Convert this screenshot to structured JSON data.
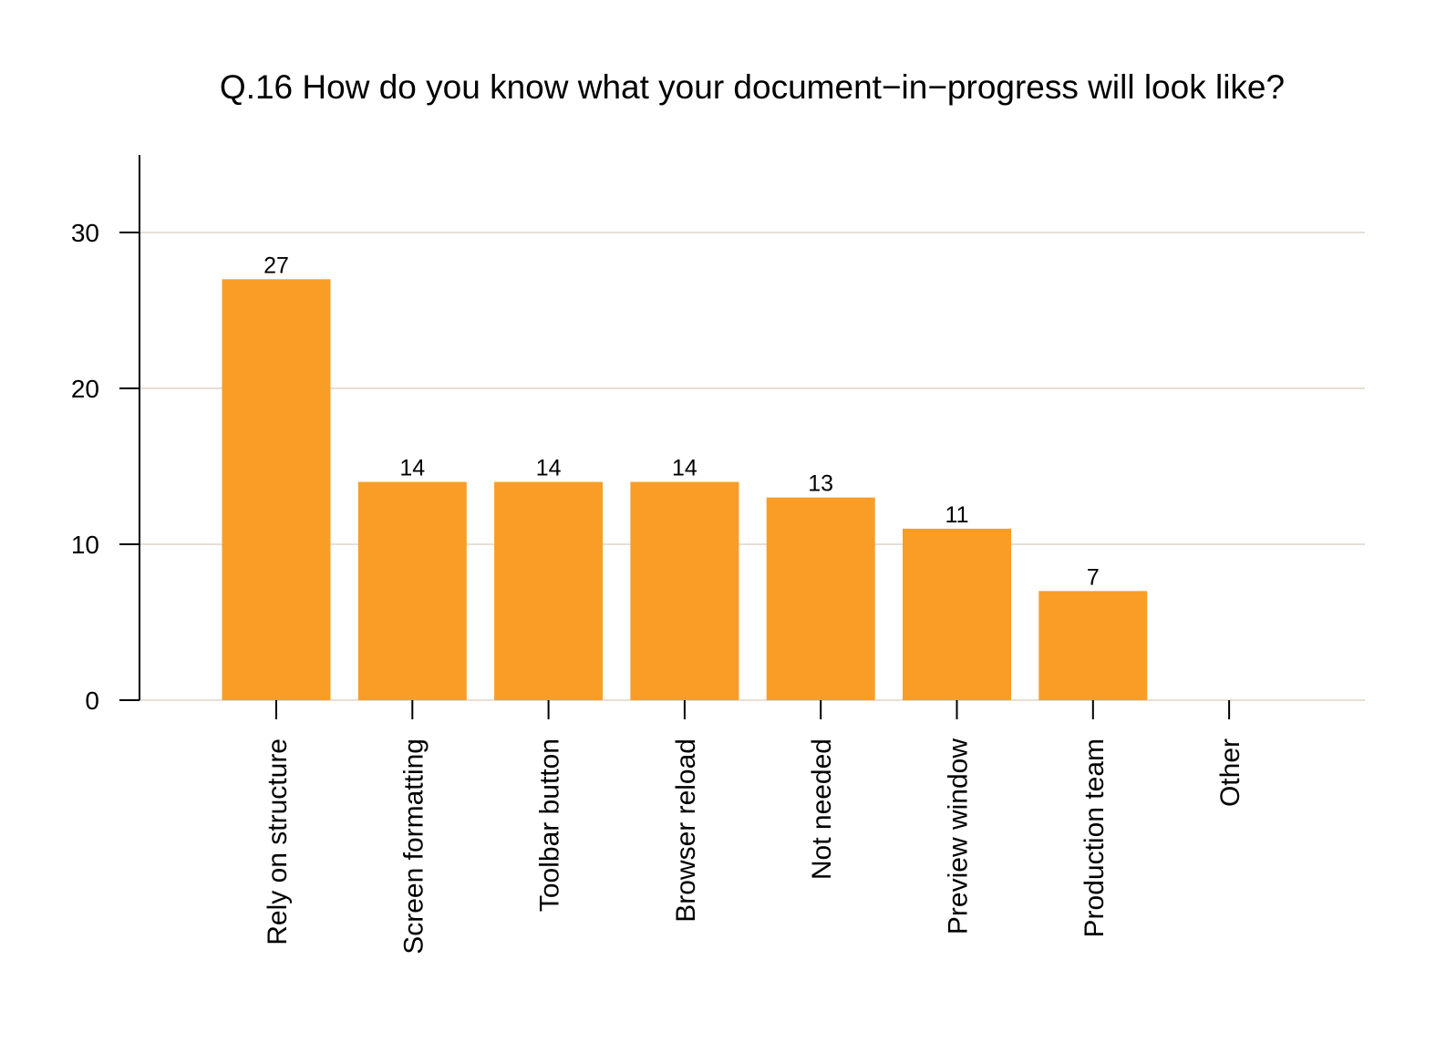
{
  "chart_data": {
    "type": "bar",
    "title": "Q.16 How do you know what your document−in−progress will look like?",
    "xlabel": "",
    "ylabel": "",
    "categories": [
      "Rely on structure",
      "Screen formatting",
      "Toolbar button",
      "Browser reload",
      "Not needed",
      "Preview window",
      "Production team",
      "Other"
    ],
    "values": [
      27,
      14,
      14,
      14,
      13,
      11,
      7,
      0
    ],
    "data_labels": [
      "27",
      "14",
      "14",
      "14",
      "13",
      "11",
      "7",
      ""
    ],
    "yticks": [
      0,
      10,
      20,
      30
    ],
    "ylim": [
      0,
      35
    ],
    "grid": "horizontal",
    "legend": "none",
    "colors": {
      "bar": "#f99d27",
      "grid": "#ddd3c9",
      "axis": "#000000"
    }
  }
}
